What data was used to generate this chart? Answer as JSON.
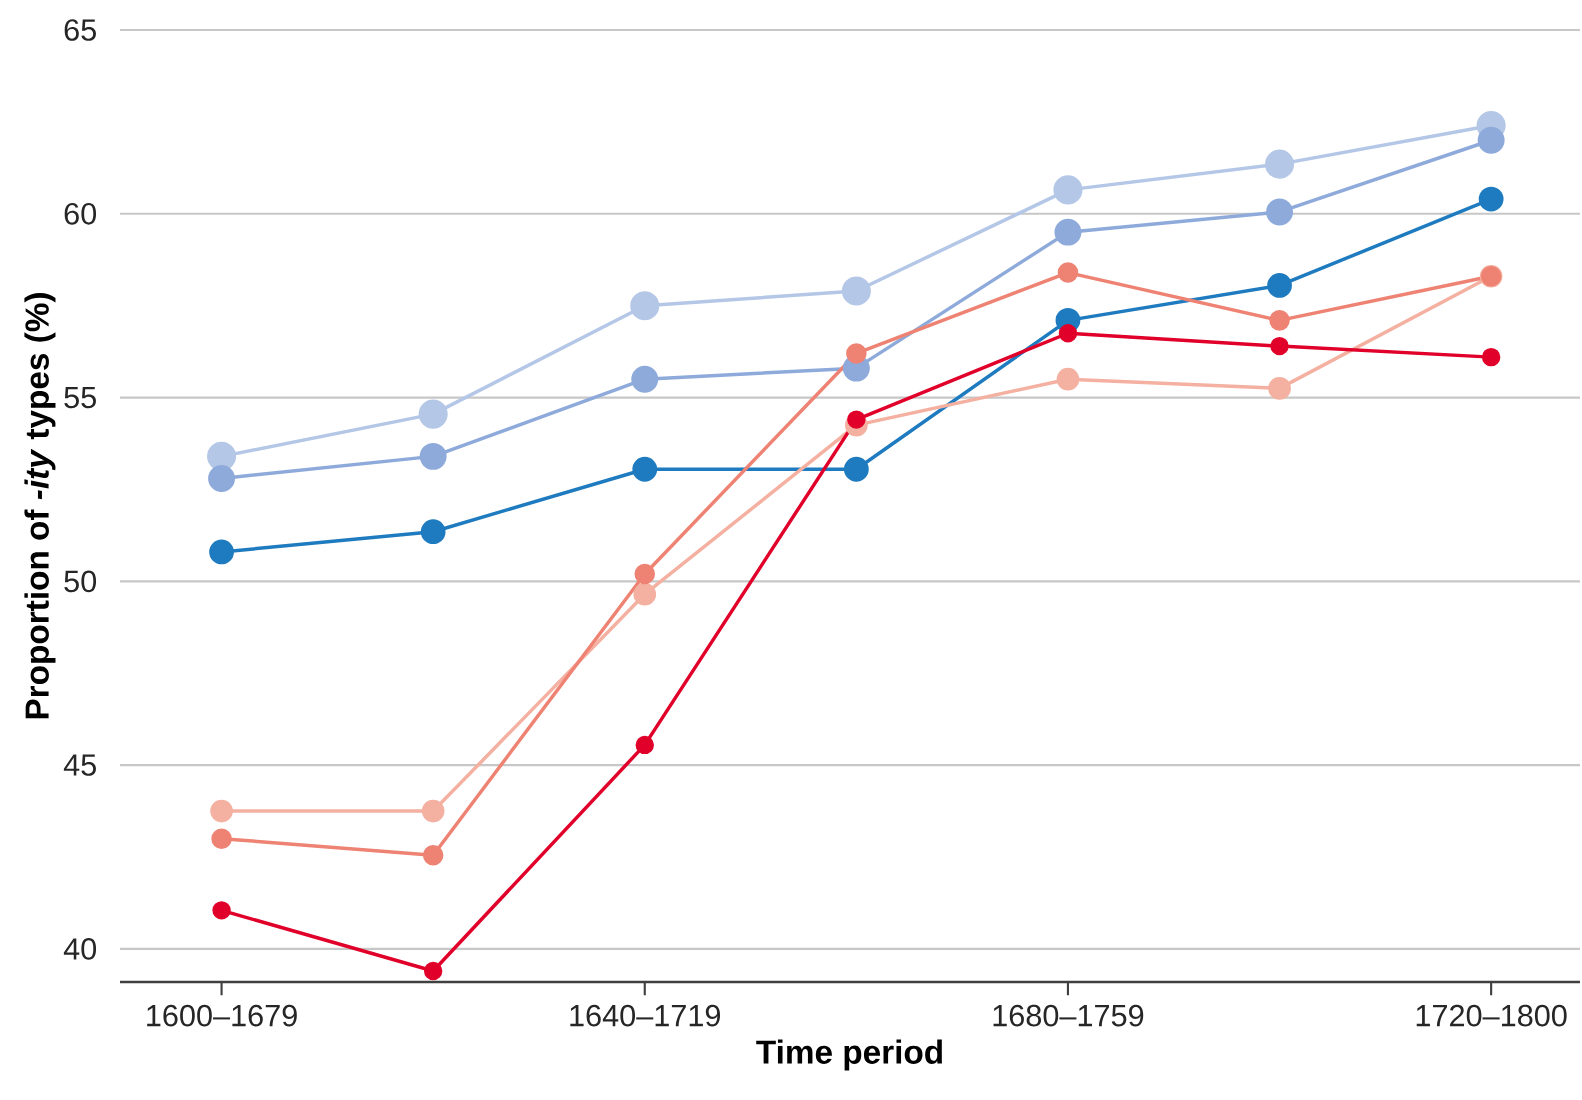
{
  "chart_data": {
    "type": "line",
    "xlabel": "Time period",
    "ylabel": "Proportion of *-ity* types (%)",
    "categories": [
      "1600–1679",
      null,
      "1640–1719",
      null,
      "1680–1759",
      null,
      "1720–1800"
    ],
    "ylim": [
      39.1,
      65
    ],
    "yticks": [
      40,
      45,
      50,
      55,
      60,
      65
    ],
    "grid": "y",
    "marker": "circle",
    "line_style": "solid",
    "series": [
      {
        "color": "#b4c7e7",
        "values": [
          53.4,
          54.55,
          57.5,
          57.9,
          60.65,
          61.35,
          62.4
        ]
      },
      {
        "color": "#8eaadb",
        "values": [
          52.8,
          53.4,
          55.5,
          55.8,
          59.5,
          60.05,
          62.0
        ]
      },
      {
        "color": "#1f7bbf",
        "values": [
          50.8,
          51.35,
          53.05,
          53.05,
          57.1,
          58.05,
          60.4
        ]
      },
      {
        "color": "#f4b0a0",
        "values": [
          43.75,
          43.75,
          49.65,
          54.25,
          55.5,
          55.25,
          58.3
        ]
      },
      {
        "color": "#ee8273",
        "values": [
          43.0,
          42.55,
          50.2,
          56.2,
          58.4,
          57.1,
          58.3
        ]
      },
      {
        "color": "#e0002a",
        "values": [
          41.05,
          39.4,
          45.55,
          54.4,
          56.75,
          56.4,
          56.1
        ]
      }
    ]
  }
}
